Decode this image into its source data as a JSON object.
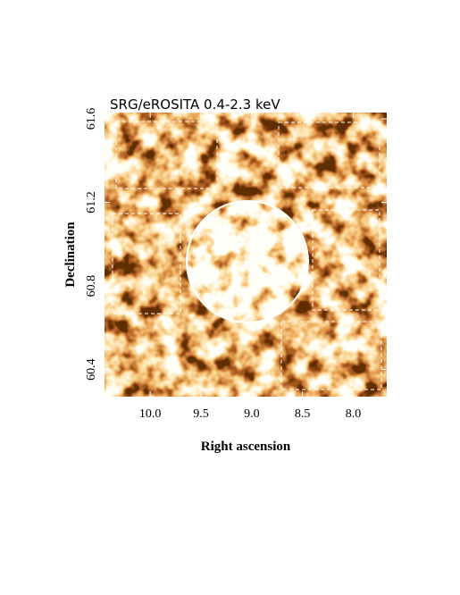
{
  "chart_data": {
    "type": "image",
    "title": "SRG/eROSITA 0.4-2.3 keV",
    "xlabel": "Right ascension",
    "ylabel": "Declination",
    "xlim": [
      10.45,
      7.67
    ],
    "ylim": [
      60.27,
      61.63
    ],
    "xticks": [
      {
        "value": 10,
        "label": "10.0"
      },
      9.5,
      {
        "value": 9,
        "label": "9.0"
      },
      8.5,
      {
        "value": 8,
        "label": "8.0"
      }
    ],
    "yticks": [
      60.4,
      60.8,
      61.2,
      61.6
    ]
  }
}
